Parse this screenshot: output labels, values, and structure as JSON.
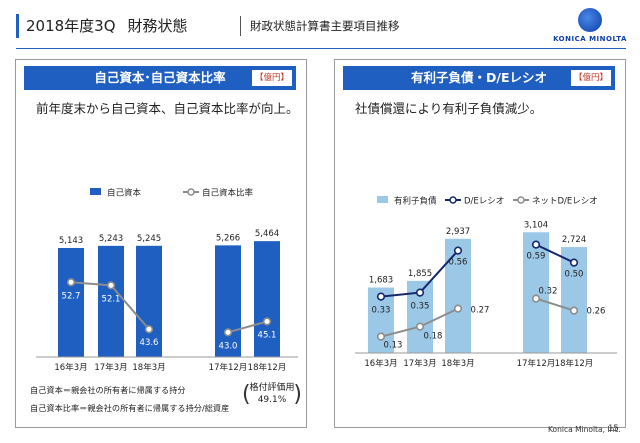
{
  "header": {
    "title_year": "2018年度3Q",
    "title_main": "財務状態",
    "subtitle": "財政状態計算書主要項目推移",
    "logo_text": "KONICA MINOLTA"
  },
  "footer": {
    "company": "Konica Minolta, Inc.",
    "page": "15"
  },
  "colors": {
    "blue": "#1f5fc1",
    "lightblue": "#9cc8e8",
    "navy": "#14276b",
    "gray": "#8c8c8c",
    "accent": "#c0392b"
  },
  "left": {
    "title": "自己資本･自己資本比率",
    "unit": "【億円】",
    "desc": "前年度末から自己資本、自己資本比率が向上。",
    "note1": "自己資本＝親会社の所有者に帰属する持分",
    "note2": "自己資本比率＝親会社の所有者に帰属する持分/総資産",
    "rating_label": "格付評価用",
    "rating_value": "49.1%"
  },
  "right": {
    "title": "有利子負債・D/Eレシオ",
    "unit": "【億円】",
    "desc": "社債償還により有利子負債減少。"
  },
  "chart_data": [
    {
      "type": "bar",
      "categories": [
        "16年3月",
        "17年3月",
        "18年3月",
        "17年12月",
        "18年12月"
      ],
      "series": [
        {
          "name": "自己資本",
          "kind": "bar",
          "values": [
            5143,
            5243,
            5245,
            5266,
            5464
          ]
        },
        {
          "name": "自己資本比率",
          "kind": "line",
          "values": [
            52.7,
            52.1,
            43.6,
            43.0,
            45.1
          ],
          "segments": [
            [
              0,
              2
            ],
            [
              3,
              4
            ]
          ]
        }
      ]
    },
    {
      "type": "bar",
      "categories": [
        "16年3月",
        "17年3月",
        "18年3月",
        "17年12月",
        "18年12月"
      ],
      "series": [
        {
          "name": "有利子負債",
          "kind": "bar",
          "values": [
            1683,
            1855,
            2937,
            3104,
            2724
          ]
        },
        {
          "name": "D/Eレシオ",
          "kind": "line",
          "values": [
            0.33,
            0.35,
            0.56,
            0.59,
            0.5
          ],
          "segments": [
            [
              0,
              2
            ],
            [
              3,
              4
            ]
          ]
        },
        {
          "name": "ネットD/Eレシオ",
          "kind": "line",
          "values": [
            0.13,
            0.18,
            0.27,
            0.32,
            0.26
          ],
          "segments": [
            [
              0,
              2
            ],
            [
              3,
              4
            ]
          ]
        }
      ]
    }
  ]
}
